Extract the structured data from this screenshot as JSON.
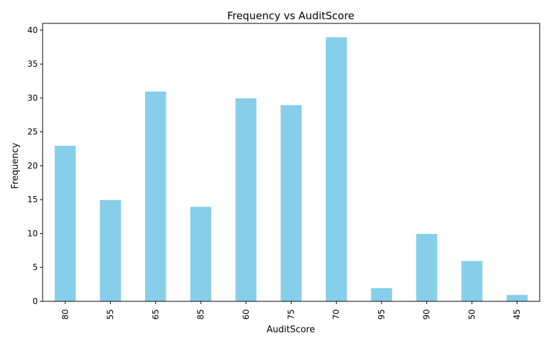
{
  "chart_data": {
    "type": "bar",
    "title": "Frequency vs AuditScore",
    "xlabel": "AuditScore",
    "ylabel": "Frequency",
    "categories": [
      "80",
      "55",
      "65",
      "85",
      "60",
      "75",
      "70",
      "95",
      "90",
      "50",
      "45"
    ],
    "values": [
      23,
      15,
      31,
      14,
      30,
      29,
      39,
      2,
      10,
      6,
      1
    ],
    "ylim": [
      0,
      41
    ],
    "yticks": [
      0,
      5,
      10,
      15,
      20,
      25,
      30,
      35,
      40
    ],
    "grid": false,
    "bar_color": "#87ceeb",
    "bar_edge_color": "#ffffff"
  }
}
